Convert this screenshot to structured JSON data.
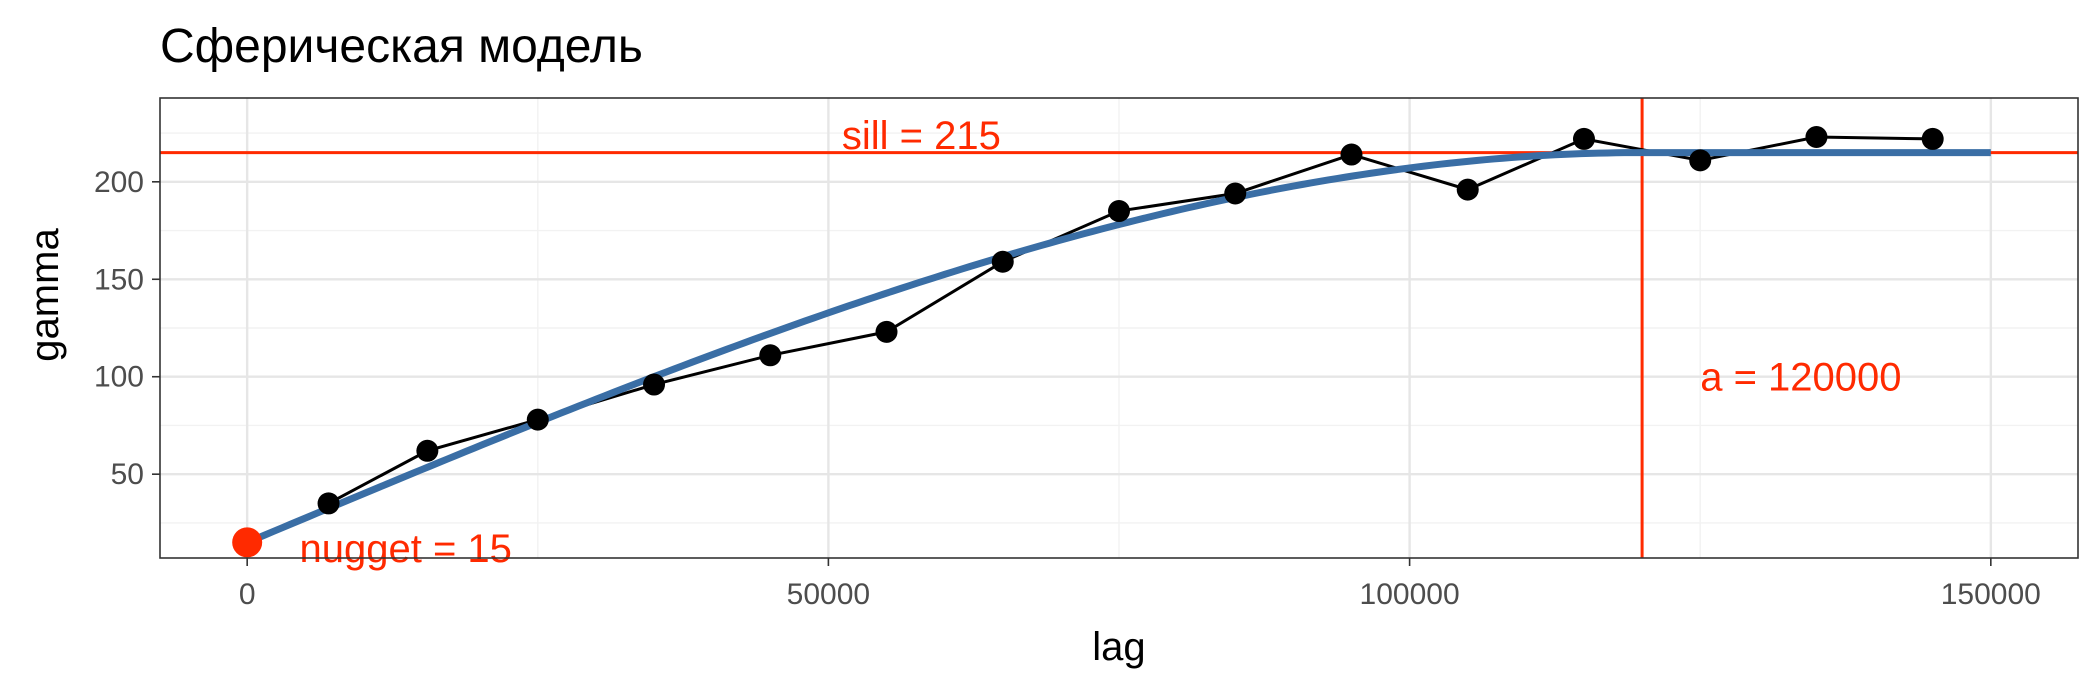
{
  "chart_data": {
    "type": "line",
    "title": "Сферическая модель",
    "xlabel": "lag",
    "ylabel": "gamma",
    "xlim": [
      -7500,
      157500
    ],
    "ylim": [
      7,
      243
    ],
    "x_ticks": [
      0,
      50000,
      100000,
      150000
    ],
    "x_tick_labels": [
      "0",
      "50000",
      "100000",
      "150000"
    ],
    "y_ticks": [
      50,
      100,
      150,
      200
    ],
    "y_tick_labels": [
      "50",
      "100",
      "150",
      "200"
    ],
    "grid": true,
    "series": [
      {
        "kind": "empirical",
        "color": "#000000",
        "x": [
          7000,
          15500,
          25000,
          35000,
          45000,
          55000,
          65000,
          75000,
          85000,
          95000,
          105000,
          115000,
          125000,
          135000,
          145000
        ],
        "y": [
          35,
          62,
          78,
          96,
          111,
          123,
          159,
          185,
          194,
          214,
          196,
          222,
          211,
          223,
          222
        ]
      },
      {
        "kind": "model",
        "color": "#3a6ea5",
        "model": "spherical",
        "nugget": 15,
        "sill": 215,
        "range": 120000,
        "x_max": 150000
      }
    ],
    "reference_lines": {
      "color": "#ff2a00",
      "sill_y": 215,
      "range_x": 120000
    },
    "nugget_point": {
      "x": 0,
      "y": 15,
      "color": "#ff2a00"
    },
    "annotations": [
      {
        "text": "sill = 215",
        "x": 58000,
        "y": 224,
        "anchor": "middle"
      },
      {
        "text": "a = 120000",
        "x": 125000,
        "y": 100,
        "anchor": "start"
      },
      {
        "text": "nugget = 15",
        "x": 4500,
        "y": 6,
        "anchor": "start"
      }
    ]
  }
}
